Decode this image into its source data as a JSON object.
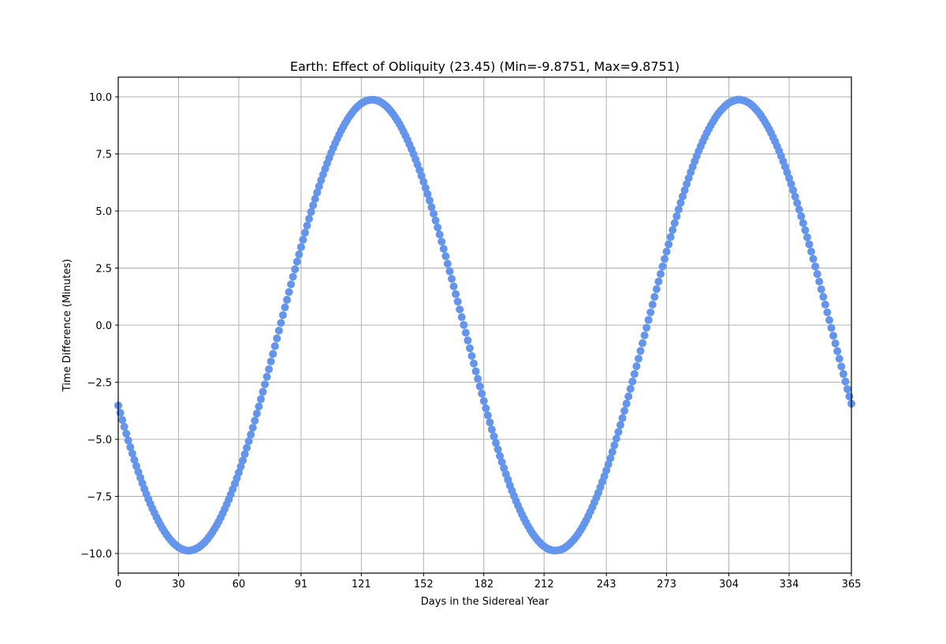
{
  "chart_data": {
    "type": "scatter",
    "title": "Earth: Effect of Obliquity (23.45) (Min=-9.8751, Max=9.8751)",
    "xlabel": "Days in the Sidereal Year",
    "ylabel": "Time Difference (Minutes)",
    "xlim": [
      0,
      365
    ],
    "ylim": [
      -10.87,
      10.87
    ],
    "xticks": [
      0,
      30,
      60,
      91,
      121,
      152,
      182,
      212,
      243,
      273,
      304,
      334,
      365
    ],
    "yticks": [
      -10.0,
      -7.5,
      -5.0,
      -2.5,
      0.0,
      2.5,
      5.0,
      7.5,
      10.0
    ],
    "ytick_labels": [
      "−10.0",
      "−7.5",
      "−5.0",
      "−2.5",
      "0.0",
      "2.5",
      "5.0",
      "7.5",
      "10.0"
    ],
    "grid": true,
    "legend": null,
    "marker_color": "#6495ed",
    "series": [
      {
        "name": "obliquity effect",
        "amplitude": 9.8751,
        "min": -9.8751,
        "max": 9.8751,
        "x_start": 0,
        "x_end": 365,
        "x_step": 1,
        "values": []
      }
    ]
  },
  "colors": {
    "marker": "#6495ed",
    "grid": "#b0b0b0",
    "axis": "#000000",
    "background": "#ffffff"
  }
}
